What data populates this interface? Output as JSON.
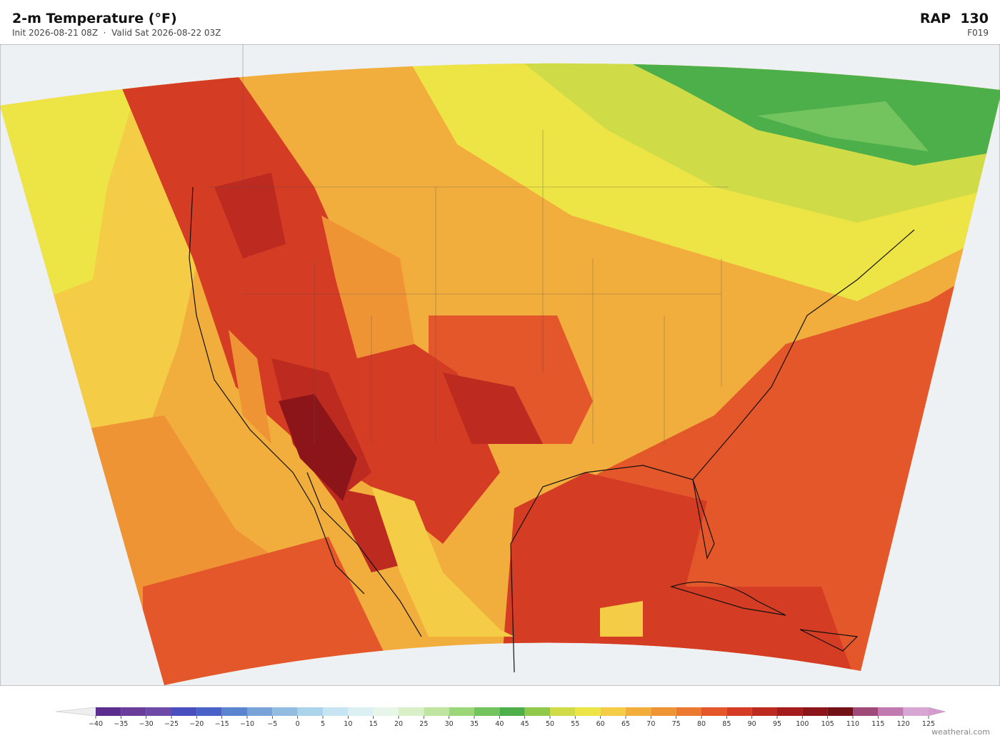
{
  "header": {
    "title": "2-m Temperature  (°F)",
    "init": "Init 2026-08-21 08Z",
    "valid": "Valid Sat 2026-08-22 03Z",
    "model": "RAP  130",
    "forecast_hour": "F019"
  },
  "colorbar": {
    "ticks": [
      {
        "value": -40,
        "label": "−40"
      },
      {
        "value": -35,
        "label": "−35"
      },
      {
        "value": -30,
        "label": "−30"
      },
      {
        "value": -25,
        "label": "−25"
      },
      {
        "value": -20,
        "label": "−20"
      },
      {
        "value": -15,
        "label": "−15"
      },
      {
        "value": -10,
        "label": "−10"
      },
      {
        "value": -5,
        "label": "−5"
      },
      0,
      5,
      10,
      15,
      20,
      25,
      30,
      35,
      40,
      45,
      50,
      55,
      60,
      65,
      70,
      75,
      80,
      85,
      90,
      95,
      100,
      105,
      110,
      115,
      120,
      125
    ],
    "colors": [
      "#5b2d8e",
      "#6a3d9a",
      "#6e4aa8",
      "#4a4fc0",
      "#4a62c8",
      "#5b84d0",
      "#79a3d8",
      "#93bde0",
      "#abd3ea",
      "#c6e4f1",
      "#dcf0f3",
      "#e8f6ea",
      "#d8efc8",
      "#bfe5a0",
      "#9bd67a",
      "#73c45e",
      "#4daf4a",
      "#8fc84a",
      "#cfdc48",
      "#ede445",
      "#f5cc45",
      "#f2ae3c",
      "#ef9435",
      "#eb7930",
      "#e4572a",
      "#d43c24",
      "#bd2a20",
      "#a41d1c",
      "#8c1519",
      "#731216",
      "#a04a7a",
      "#c07ab0",
      "#d8a6d2"
    ],
    "under_color": "#eeeeee",
    "over_color": "#d79ad0"
  },
  "watermark": "weatherai.com"
}
